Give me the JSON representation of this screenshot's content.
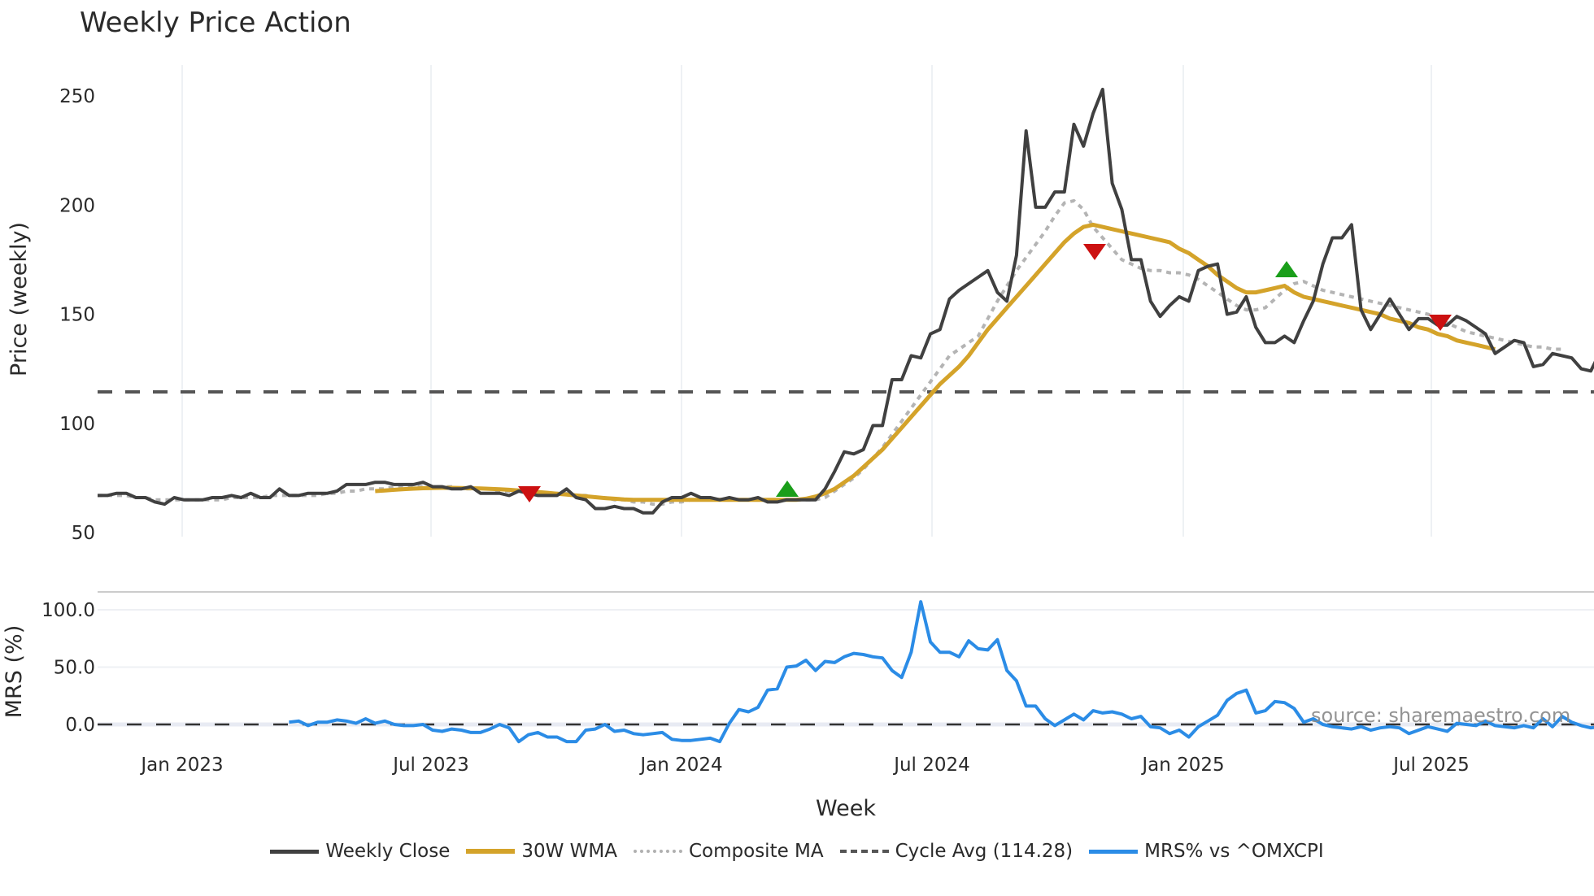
{
  "title": "Weekly Price Action",
  "source_note": "source: sharemaestro.com",
  "legend": [
    {
      "label": "Weekly Close",
      "color": "#404040",
      "style": "solid"
    },
    {
      "label": "30W WMA",
      "color": "#d4a32a",
      "style": "solid"
    },
    {
      "label": "Composite MA",
      "color": "#b0b0b0",
      "style": "dotted"
    },
    {
      "label": "Cycle Avg (114.28)",
      "color": "#555555",
      "style": "dashed"
    },
    {
      "label": "MRS% vs ^OMXCPI",
      "color": "#2b8ce6",
      "style": "solid"
    }
  ],
  "chart_data": [
    {
      "type": "line",
      "title": "Weekly Price Action",
      "xlabel": "Week",
      "ylabel": "Price (weekly)",
      "ylim": [
        45,
        260
      ],
      "yticks": [
        50,
        100,
        150,
        200,
        250
      ],
      "xticks": [
        "Jan 2023",
        "Jul 2023",
        "Jan 2024",
        "Jul 2024",
        "Jan 2025",
        "Jul 2025"
      ],
      "grid": "vertical",
      "legend_position": "bottom",
      "reference_lines": [
        {
          "name": "Cycle Avg",
          "value": 114.28,
          "style": "dashed"
        }
      ],
      "markers": [
        {
          "type": "sell",
          "shape": "triangle-down",
          "color": "#cc1111",
          "date": "2023-09",
          "value": 68
        },
        {
          "type": "buy",
          "shape": "triangle-up",
          "color": "#1a9e1a",
          "date": "2024-03",
          "value": 70
        },
        {
          "type": "sell",
          "shape": "triangle-down",
          "color": "#cc1111",
          "date": "2024-11",
          "value": 178
        },
        {
          "type": "buy",
          "shape": "triangle-up",
          "color": "#1a9e1a",
          "date": "2025-04",
          "value": 170
        },
        {
          "type": "sell",
          "shape": "triangle-down",
          "color": "#cc1111",
          "date": "2025-07",
          "value": 146
        }
      ],
      "series": [
        {
          "name": "Weekly Close",
          "values": [
            67,
            67,
            68,
            68,
            66,
            66,
            64,
            63,
            66,
            65,
            65,
            65,
            66,
            66,
            67,
            66,
            68,
            66,
            66,
            70,
            67,
            67,
            68,
            68,
            68,
            69,
            72,
            72,
            72,
            73,
            73,
            72,
            72,
            72,
            73,
            71,
            71,
            70,
            70,
            71,
            68,
            68,
            68,
            67,
            69,
            68,
            67,
            67,
            67,
            70,
            66,
            65,
            61,
            61,
            62,
            61,
            61,
            59,
            59,
            64,
            66,
            66,
            68,
            66,
            66,
            65,
            66,
            65,
            65,
            66,
            64,
            64,
            65,
            65,
            65,
            65,
            70,
            78,
            87,
            86,
            88,
            99,
            99,
            120,
            120,
            131,
            130,
            141,
            143,
            157,
            161,
            164,
            167,
            170,
            160,
            156,
            177,
            234,
            199,
            199,
            206,
            206,
            237,
            227,
            242,
            253,
            210,
            198,
            175,
            175,
            156,
            149,
            154,
            158,
            156,
            170,
            172,
            173,
            150,
            151,
            158,
            144,
            137,
            137,
            140,
            137,
            147,
            156,
            173,
            185,
            185,
            191,
            152,
            143,
            150,
            157,
            150,
            143,
            148,
            148,
            145,
            145,
            149,
            147,
            144,
            141,
            132,
            135,
            138,
            137,
            126,
            127,
            132,
            131,
            130,
            125,
            124,
            133,
            142,
            131,
            141,
            131,
            130,
            131
          ]
        },
        {
          "name": "30W WMA",
          "start_index": 29,
          "values": [
            69,
            69.3,
            69.6,
            69.9,
            70.1,
            70.3,
            70.4,
            70.5,
            70.5,
            70.4,
            70.3,
            70.2,
            70.0,
            69.8,
            69.6,
            69.3,
            69.0,
            68.6,
            68.2,
            67.8,
            67.4,
            67.0,
            66.6,
            66.2,
            65.8,
            65.5,
            65.2,
            65,
            65,
            65,
            65,
            65,
            65,
            65,
            65,
            65,
            65,
            65,
            65,
            65,
            65,
            65,
            65,
            65,
            65,
            65.5,
            66.5,
            68,
            70,
            73,
            76,
            80,
            84,
            88,
            93,
            98,
            103,
            108,
            113,
            118,
            122,
            126,
            131,
            137,
            143,
            148,
            153,
            158,
            163,
            168,
            173,
            178,
            183,
            187,
            190,
            191,
            190,
            189,
            188,
            187,
            186,
            185,
            184,
            183,
            180,
            178,
            175,
            172,
            168,
            165,
            162,
            160,
            160,
            161,
            162,
            163,
            160,
            158,
            157,
            156,
            155,
            154,
            153,
            152,
            151,
            150,
            148,
            147,
            146,
            144,
            143,
            141,
            140,
            138,
            137,
            136,
            135,
            134
          ]
        },
        {
          "name": "Composite MA",
          "values": [
            67,
            67,
            67,
            67,
            66,
            66,
            65,
            65,
            65,
            65,
            65,
            65,
            65,
            65,
            66,
            66,
            66,
            66,
            67,
            67,
            67,
            67,
            67,
            67,
            68,
            68,
            69,
            69,
            70,
            70,
            70,
            71,
            71,
            71,
            71,
            71,
            71,
            71,
            70,
            70,
            70,
            70,
            69,
            69,
            69,
            69,
            68,
            68,
            68,
            68,
            67,
            67,
            66,
            66,
            65,
            65,
            64,
            64,
            63,
            63,
            64,
            64,
            65,
            65,
            65,
            65,
            65,
            65,
            65,
            65,
            65,
            65,
            65,
            65,
            65,
            65,
            66,
            69,
            72,
            75,
            79,
            84,
            89,
            95,
            101,
            107,
            113,
            119,
            125,
            131,
            134,
            137,
            140,
            148,
            156,
            163,
            170,
            176,
            182,
            188,
            195,
            201,
            202,
            198,
            190,
            185,
            180,
            175,
            173,
            171,
            170,
            170,
            169,
            169,
            168,
            166,
            163,
            160,
            157,
            154,
            152,
            152,
            153,
            157,
            161,
            164,
            165,
            163,
            161,
            160,
            159,
            158,
            157,
            156,
            155,
            154,
            153,
            152,
            151,
            150,
            148,
            146,
            144,
            142,
            141,
            140,
            139,
            138,
            137,
            136,
            135,
            135,
            134,
            134
          ]
        },
        {
          "name": "Cycle Avg",
          "value": 114.28
        }
      ]
    },
    {
      "type": "line",
      "ylabel": "MRS (%)",
      "ylim": [
        -25,
        115
      ],
      "yticks": [
        0.0,
        50.0,
        100.0
      ],
      "reference_lines": [
        {
          "value": 0,
          "style": "dashed"
        }
      ],
      "series": [
        {
          "name": "MRS% vs ^OMXCPI",
          "start_index": 20,
          "values": [
            2,
            3,
            -1,
            2,
            2,
            4,
            3,
            1,
            5,
            1,
            3,
            0,
            -1,
            -1,
            0,
            -5,
            -6,
            -4,
            -5,
            -7,
            -7,
            -4,
            0,
            -3,
            -15,
            -9,
            -7,
            -11,
            -11,
            -15,
            -15,
            -5,
            -4,
            0,
            -6,
            -5,
            -8,
            -9,
            -8,
            -7,
            -13,
            -14,
            -14,
            -13,
            -12,
            -15,
            1,
            13,
            11,
            15,
            30,
            31,
            50,
            51,
            56,
            47,
            55,
            54,
            59,
            62,
            61,
            59,
            58,
            47,
            41,
            63,
            107,
            72,
            63,
            63,
            59,
            73,
            66,
            65,
            74,
            47,
            38,
            16,
            16,
            5,
            -1,
            4,
            9,
            4,
            12,
            10,
            11,
            9,
            5,
            7,
            -2,
            -3,
            -8,
            -5,
            -11,
            -2,
            3,
            8,
            21,
            27,
            30,
            10,
            12,
            20,
            19,
            14,
            2,
            5,
            0,
            -2,
            -3,
            -4,
            -2,
            -5,
            -3,
            -2,
            -3,
            -8,
            -5,
            -2,
            -4,
            -6,
            1,
            0,
            -1,
            3,
            -1,
            -2,
            -3,
            -1,
            -3,
            5,
            -2,
            7,
            2,
            -1,
            -3,
            -2
          ]
        }
      ]
    }
  ],
  "axes": {
    "price": {
      "ylabel": "Price (weekly)",
      "yticks": [
        "250",
        "200",
        "150",
        "100",
        "50"
      ]
    },
    "mrs": {
      "ylabel": "MRS (%)",
      "yticks": [
        "100.0",
        "50.0",
        "0.0"
      ]
    },
    "x": {
      "xlabel": "Week",
      "xticks": [
        "Jan 2023",
        "Jul 2023",
        "Jan 2024",
        "Jul 2024",
        "Jan 2025",
        "Jul 2025"
      ]
    }
  }
}
